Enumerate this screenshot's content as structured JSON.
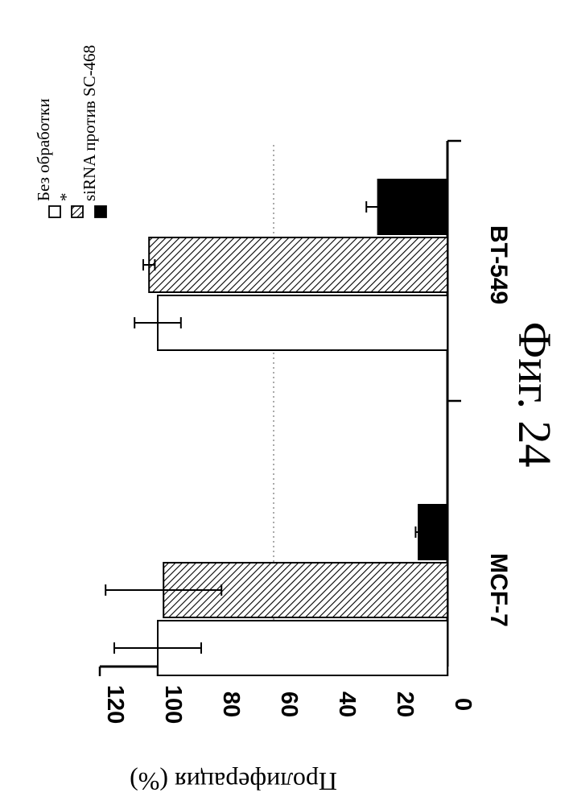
{
  "figure_caption": "Фиг. 24",
  "chart_data": {
    "type": "bar",
    "orientation": "rotated-90-clockwise",
    "title": "",
    "xlabel": "",
    "ylabel": "Пролиферация (%)",
    "ylim": [
      0,
      120
    ],
    "yticks": [
      "0",
      "20",
      "40",
      "60",
      "80",
      "100",
      "120"
    ],
    "grid": "dotted line at 60",
    "legend_position": "top-right",
    "categories": [
      "MCF-7",
      "BT-549"
    ],
    "series": [
      {
        "name": "Без обработки",
        "fill": "white",
        "values": [
          100,
          100
        ],
        "errors": [
          15,
          8
        ]
      },
      {
        "name": "*",
        "fill": "hatched",
        "values": [
          98,
          103
        ],
        "errors": [
          20,
          2
        ]
      },
      {
        "name": "siRNA против SC-468",
        "fill": "black",
        "values": [
          10,
          24
        ],
        "errors": [
          1,
          4
        ]
      }
    ]
  },
  "colors": {
    "ink": "#000000",
    "background": "#ffffff"
  }
}
